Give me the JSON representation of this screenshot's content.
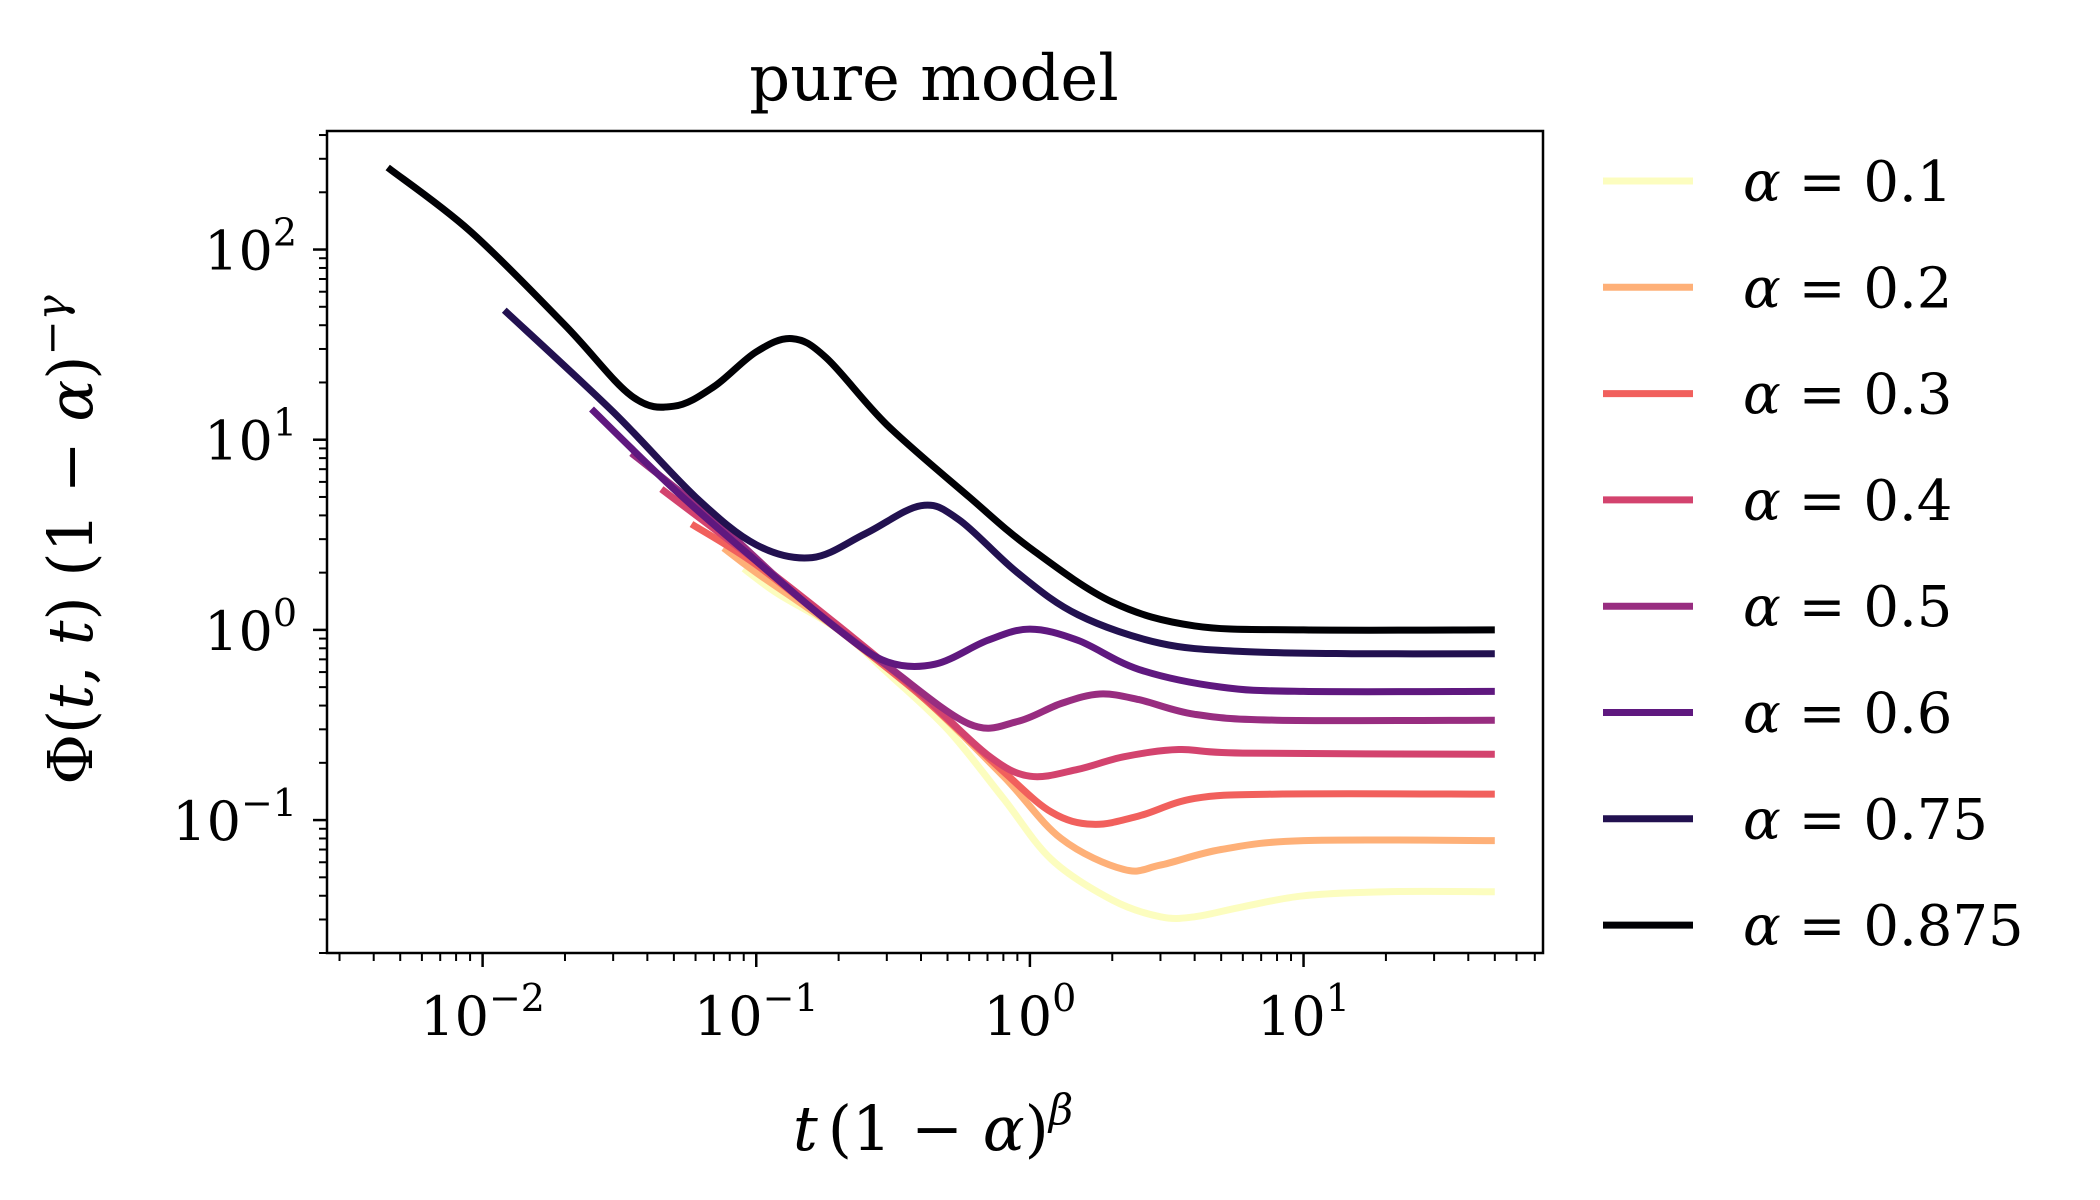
{
  "chart_data": {
    "type": "line",
    "title": "pure model",
    "xlabel": "t (1 − α)^β",
    "ylabel": "Φ(t, t) (1 − α)^−γ",
    "xscale": "log",
    "yscale": "log",
    "xlim": [
      0.0027,
      75
    ],
    "ylim": [
      0.02,
      420
    ],
    "x_ticks": [
      {
        "value": 0.01,
        "base": "10",
        "exp": "−2"
      },
      {
        "value": 0.1,
        "base": "10",
        "exp": "−1"
      },
      {
        "value": 1,
        "base": "10",
        "exp": "0"
      },
      {
        "value": 10,
        "base": "10",
        "exp": "1"
      }
    ],
    "y_ticks": [
      {
        "value": 0.1,
        "base": "10",
        "exp": "−1"
      },
      {
        "value": 1,
        "base": "10",
        "exp": "0"
      },
      {
        "value": 10,
        "base": "10",
        "exp": "1"
      },
      {
        "value": 100,
        "base": "10",
        "exp": "2"
      }
    ],
    "grid": false,
    "legend_position": "outside-right",
    "series": [
      {
        "name": "α = 0.1",
        "label_lhs": "α",
        "label_rhs": "0.1",
        "color": "#fcfdbf",
        "points": [
          [
            0.09,
            2.1
          ],
          [
            0.12,
            1.55
          ],
          [
            0.2,
            1.0
          ],
          [
            0.3,
            0.6
          ],
          [
            0.5,
            0.3
          ],
          [
            0.8,
            0.13
          ],
          [
            1.2,
            0.062
          ],
          [
            2.0,
            0.038
          ],
          [
            3.0,
            0.031
          ],
          [
            4.0,
            0.031
          ],
          [
            6.0,
            0.035
          ],
          [
            10,
            0.04
          ],
          [
            20,
            0.042
          ],
          [
            50,
            0.042
          ]
        ]
      },
      {
        "name": "α = 0.2",
        "label_lhs": "α",
        "label_rhs": "0.2",
        "color": "#feb078",
        "points": [
          [
            0.076,
            2.7
          ],
          [
            0.1,
            2.0
          ],
          [
            0.2,
            1.0
          ],
          [
            0.4,
            0.45
          ],
          [
            0.8,
            0.17
          ],
          [
            1.3,
            0.08
          ],
          [
            2.2,
            0.055
          ],
          [
            3.0,
            0.058
          ],
          [
            5.0,
            0.07
          ],
          [
            10,
            0.078
          ],
          [
            50,
            0.078
          ]
        ]
      },
      {
        "name": "α = 0.3",
        "label_lhs": "α",
        "label_rhs": "0.3",
        "color": "#f1605d",
        "points": [
          [
            0.058,
            3.6
          ],
          [
            0.1,
            2.2
          ],
          [
            0.2,
            1.0
          ],
          [
            0.4,
            0.45
          ],
          [
            0.8,
            0.18
          ],
          [
            1.2,
            0.11
          ],
          [
            1.7,
            0.095
          ],
          [
            2.5,
            0.105
          ],
          [
            4.0,
            0.13
          ],
          [
            8.0,
            0.137
          ],
          [
            50,
            0.137
          ]
        ]
      },
      {
        "name": "α = 0.4",
        "label_lhs": "α",
        "label_rhs": "0.4",
        "color": "#d3436e",
        "points": [
          [
            0.045,
            5.5
          ],
          [
            0.1,
            2.3
          ],
          [
            0.2,
            1.05
          ],
          [
            0.4,
            0.46
          ],
          [
            0.7,
            0.22
          ],
          [
            1.0,
            0.17
          ],
          [
            1.5,
            0.185
          ],
          [
            2.2,
            0.215
          ],
          [
            3.5,
            0.235
          ],
          [
            6.0,
            0.225
          ],
          [
            50,
            0.222
          ]
        ]
      },
      {
        "name": "α = 0.5",
        "label_lhs": "α",
        "label_rhs": "0.5",
        "color": "#982d80",
        "points": [
          [
            0.035,
            8.5
          ],
          [
            0.07,
            3.8
          ],
          [
            0.15,
            1.4
          ],
          [
            0.3,
            0.65
          ],
          [
            0.6,
            0.32
          ],
          [
            0.9,
            0.33
          ],
          [
            1.3,
            0.41
          ],
          [
            1.8,
            0.46
          ],
          [
            2.5,
            0.43
          ],
          [
            4.0,
            0.36
          ],
          [
            8.0,
            0.335
          ],
          [
            50,
            0.335
          ]
        ]
      },
      {
        "name": "α = 0.6",
        "label_lhs": "α",
        "label_rhs": "0.6",
        "color": "#5f187f",
        "points": [
          [
            0.025,
            14.5
          ],
          [
            0.05,
            5.5
          ],
          [
            0.1,
            2.3
          ],
          [
            0.2,
            1.0
          ],
          [
            0.3,
            0.68
          ],
          [
            0.45,
            0.66
          ],
          [
            0.7,
            0.88
          ],
          [
            1.0,
            1.01
          ],
          [
            1.5,
            0.88
          ],
          [
            2.5,
            0.62
          ],
          [
            5.0,
            0.5
          ],
          [
            10,
            0.475
          ],
          [
            50,
            0.475
          ]
        ]
      },
      {
        "name": "α = 0.75",
        "label_lhs": "α",
        "label_rhs": "0.75",
        "color": "#221150",
        "points": [
          [
            0.012,
            48
          ],
          [
            0.03,
            14
          ],
          [
            0.06,
            5.0
          ],
          [
            0.1,
            2.8
          ],
          [
            0.16,
            2.4
          ],
          [
            0.25,
            3.2
          ],
          [
            0.4,
            4.5
          ],
          [
            0.55,
            3.8
          ],
          [
            0.9,
            2.0
          ],
          [
            1.5,
            1.2
          ],
          [
            3.0,
            0.85
          ],
          [
            6.0,
            0.77
          ],
          [
            15,
            0.75
          ],
          [
            50,
            0.75
          ]
        ]
      },
      {
        "name": "α = 0.875",
        "label_lhs": "α",
        "label_rhs": "0.875",
        "color": "#000004",
        "points": [
          [
            0.0045,
            270
          ],
          [
            0.009,
            125
          ],
          [
            0.02,
            40
          ],
          [
            0.035,
            17
          ],
          [
            0.05,
            15
          ],
          [
            0.07,
            19
          ],
          [
            0.1,
            29
          ],
          [
            0.135,
            34
          ],
          [
            0.18,
            27
          ],
          [
            0.3,
            12
          ],
          [
            0.6,
            5.0
          ],
          [
            1.0,
            2.7
          ],
          [
            2.0,
            1.4
          ],
          [
            4.0,
            1.05
          ],
          [
            10,
            1.0
          ],
          [
            50,
            1.0
          ]
        ]
      }
    ]
  }
}
